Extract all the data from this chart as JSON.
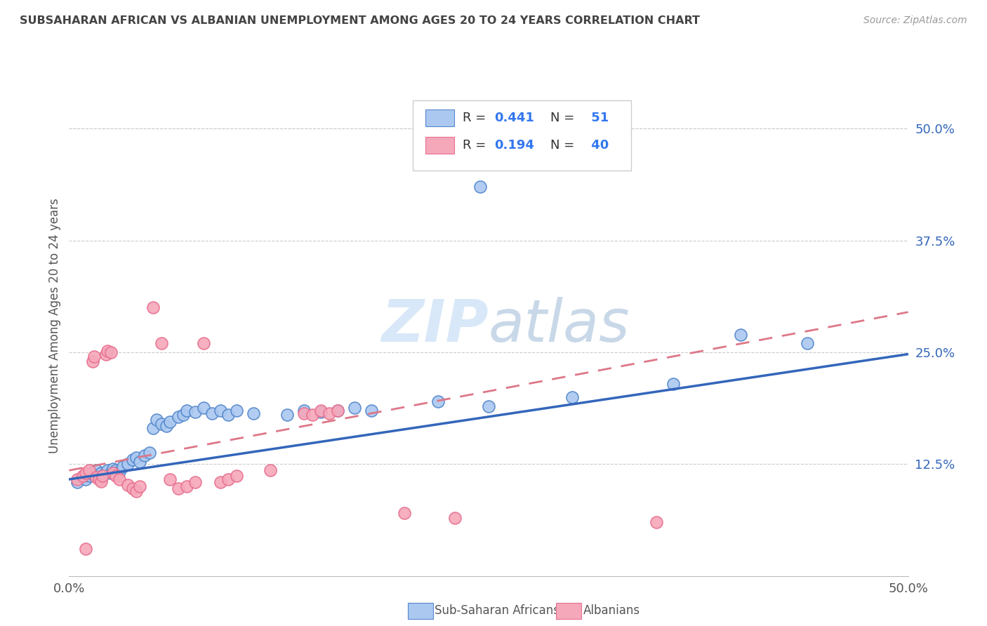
{
  "title": "SUBSAHARAN AFRICAN VS ALBANIAN UNEMPLOYMENT AMONG AGES 20 TO 24 YEARS CORRELATION CHART",
  "source": "Source: ZipAtlas.com",
  "ylabel": "Unemployment Among Ages 20 to 24 years",
  "xlim": [
    0.0,
    0.5
  ],
  "ylim": [
    0.0,
    0.56
  ],
  "xticks": [
    0.0,
    0.125,
    0.25,
    0.375,
    0.5
  ],
  "xticklabels": [
    "0.0%",
    "",
    "",
    "",
    "50.0%"
  ],
  "yticks_right": [
    0.125,
    0.25,
    0.375,
    0.5
  ],
  "yticklabels_right": [
    "12.5%",
    "25.0%",
    "37.5%",
    "50.0%"
  ],
  "legend_labels": [
    "Sub-Saharan Africans",
    "Albanians"
  ],
  "legend_r_prefix": [
    "R = ",
    "R = "
  ],
  "legend_r_val": [
    "0.441",
    "0.194"
  ],
  "legend_n_prefix": [
    "N = ",
    "N = "
  ],
  "legend_n_val": [
    " 51",
    " 40"
  ],
  "blue_color": "#aac8f0",
  "pink_color": "#f5a8ba",
  "blue_edge_color": "#5588cc",
  "pink_edge_color": "#e87090",
  "blue_line_color": "#3366bb",
  "pink_line_color": "#dd7788",
  "title_color": "#444444",
  "source_color": "#999999",
  "legend_value_color": "#3377ee",
  "legend_text_color": "#333333",
  "background_color": "#ffffff",
  "grid_color": "#cccccc",
  "watermark_color": "#d8e8f8",
  "blue_scatter": [
    [
      0.005,
      0.105
    ],
    [
      0.008,
      0.11
    ],
    [
      0.01,
      0.108
    ],
    [
      0.012,
      0.112
    ],
    [
      0.013,
      0.115
    ],
    [
      0.015,
      0.113
    ],
    [
      0.016,
      0.118
    ],
    [
      0.018,
      0.11
    ],
    [
      0.019,
      0.115
    ],
    [
      0.02,
      0.112
    ],
    [
      0.022,
      0.116
    ],
    [
      0.023,
      0.118
    ],
    [
      0.025,
      0.115
    ],
    [
      0.026,
      0.12
    ],
    [
      0.028,
      0.118
    ],
    [
      0.03,
      0.117
    ],
    [
      0.032,
      0.122
    ],
    [
      0.035,
      0.125
    ],
    [
      0.038,
      0.13
    ],
    [
      0.04,
      0.132
    ],
    [
      0.042,
      0.128
    ],
    [
      0.045,
      0.135
    ],
    [
      0.048,
      0.138
    ],
    [
      0.05,
      0.165
    ],
    [
      0.052,
      0.175
    ],
    [
      0.055,
      0.17
    ],
    [
      0.058,
      0.168
    ],
    [
      0.06,
      0.172
    ],
    [
      0.065,
      0.178
    ],
    [
      0.068,
      0.18
    ],
    [
      0.07,
      0.185
    ],
    [
      0.075,
      0.183
    ],
    [
      0.08,
      0.188
    ],
    [
      0.085,
      0.182
    ],
    [
      0.09,
      0.185
    ],
    [
      0.095,
      0.18
    ],
    [
      0.1,
      0.185
    ],
    [
      0.11,
      0.182
    ],
    [
      0.13,
      0.18
    ],
    [
      0.14,
      0.185
    ],
    [
      0.15,
      0.183
    ],
    [
      0.16,
      0.185
    ],
    [
      0.17,
      0.188
    ],
    [
      0.18,
      0.185
    ],
    [
      0.22,
      0.195
    ],
    [
      0.25,
      0.19
    ],
    [
      0.3,
      0.2
    ],
    [
      0.36,
      0.215
    ],
    [
      0.4,
      0.27
    ],
    [
      0.44,
      0.26
    ],
    [
      0.245,
      0.435
    ]
  ],
  "pink_scatter": [
    [
      0.005,
      0.108
    ],
    [
      0.008,
      0.112
    ],
    [
      0.01,
      0.115
    ],
    [
      0.012,
      0.118
    ],
    [
      0.014,
      0.24
    ],
    [
      0.015,
      0.245
    ],
    [
      0.016,
      0.11
    ],
    [
      0.018,
      0.108
    ],
    [
      0.019,
      0.106
    ],
    [
      0.02,
      0.112
    ],
    [
      0.022,
      0.248
    ],
    [
      0.023,
      0.252
    ],
    [
      0.025,
      0.25
    ],
    [
      0.026,
      0.115
    ],
    [
      0.028,
      0.112
    ],
    [
      0.03,
      0.108
    ],
    [
      0.035,
      0.102
    ],
    [
      0.038,
      0.098
    ],
    [
      0.04,
      0.095
    ],
    [
      0.042,
      0.1
    ],
    [
      0.05,
      0.3
    ],
    [
      0.055,
      0.26
    ],
    [
      0.06,
      0.108
    ],
    [
      0.065,
      0.098
    ],
    [
      0.07,
      0.1
    ],
    [
      0.075,
      0.105
    ],
    [
      0.08,
      0.26
    ],
    [
      0.09,
      0.105
    ],
    [
      0.095,
      0.108
    ],
    [
      0.1,
      0.112
    ],
    [
      0.12,
      0.118
    ],
    [
      0.14,
      0.182
    ],
    [
      0.145,
      0.18
    ],
    [
      0.15,
      0.185
    ],
    [
      0.155,
      0.182
    ],
    [
      0.16,
      0.185
    ],
    [
      0.2,
      0.07
    ],
    [
      0.23,
      0.065
    ],
    [
      0.35,
      0.06
    ],
    [
      0.01,
      0.03
    ]
  ],
  "blue_trendline": [
    [
      0.0,
      0.108
    ],
    [
      0.5,
      0.248
    ]
  ],
  "pink_trendline": [
    [
      0.0,
      0.118
    ],
    [
      0.5,
      0.295
    ]
  ]
}
